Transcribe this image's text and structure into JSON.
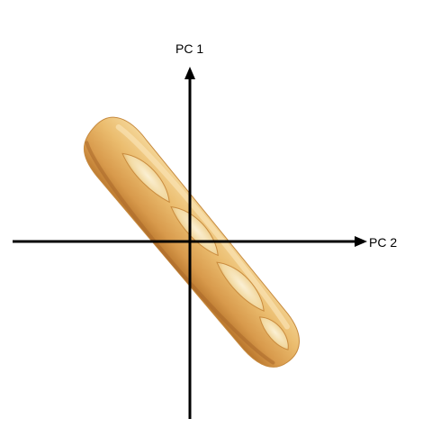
{
  "diagram": {
    "axes": {
      "vertical_label": "PC 1",
      "horizontal_label": "PC 2"
    },
    "object": {
      "icon": "baguette",
      "colors": {
        "crust_light": "#f2cd86",
        "crust_mid": "#e0a656",
        "crust_dark": "#b9762c",
        "crumb": "#f7e6bd"
      }
    },
    "colors": {
      "axis": "#000000",
      "background": "#ffffff"
    }
  }
}
